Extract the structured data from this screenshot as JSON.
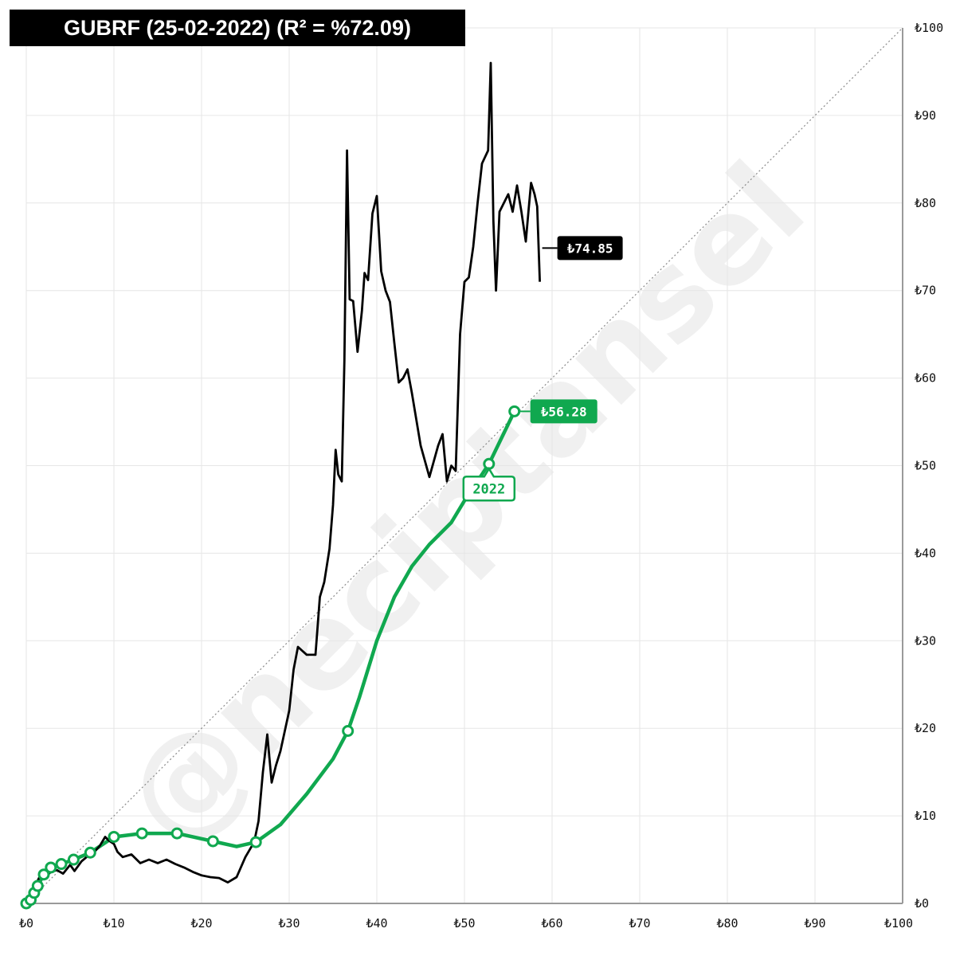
{
  "title": "GUBRF (25-02-2022) (R² = %72.09)",
  "watermark": "@neciptansel",
  "colors": {
    "price": "#000000",
    "fair": "#10a84f",
    "grid": "#e6e6e6",
    "tag_bg": "#000000"
  },
  "chart_data": {
    "type": "line",
    "title": "GUBRF (25-02-2022) (R² = %72.09)",
    "xlim": [
      0,
      100
    ],
    "ylim": [
      0,
      100
    ],
    "x_ticks": [
      "₺0",
      "₺10",
      "₺20",
      "₺30",
      "₺40",
      "₺50",
      "₺60",
      "₺70",
      "₺80",
      "₺90",
      "₺100"
    ],
    "y_ticks": [
      "₺0",
      "₺10",
      "₺20",
      "₺30",
      "₺40",
      "₺50",
      "₺60",
      "₺70",
      "₺80",
      "₺90",
      "₺100"
    ],
    "grid": true,
    "reference_line": {
      "from": [
        0,
        0
      ],
      "to": [
        100,
        100
      ],
      "style": "dotted"
    },
    "series": [
      {
        "key": "price",
        "label": "₺74.85",
        "points": [
          [
            0,
            0
          ],
          [
            0.5,
            1
          ],
          [
            1,
            2
          ],
          [
            1.5,
            3
          ],
          [
            2,
            2.8
          ],
          [
            2.8,
            3.6
          ],
          [
            3.5,
            3.8
          ],
          [
            4.2,
            3.4
          ],
          [
            5,
            4.4
          ],
          [
            5.5,
            3.7
          ],
          [
            6.3,
            4.8
          ],
          [
            7,
            5.4
          ],
          [
            7.7,
            5.8
          ],
          [
            8.4,
            6.6
          ],
          [
            9,
            7.6
          ],
          [
            9.4,
            7.2
          ],
          [
            10,
            6.8
          ],
          [
            10.4,
            5.9
          ],
          [
            11,
            5.3
          ],
          [
            12,
            5.6
          ],
          [
            13,
            4.6
          ],
          [
            14,
            5
          ],
          [
            15,
            4.6
          ],
          [
            16,
            5
          ],
          [
            17,
            4.5
          ],
          [
            18,
            4.1
          ],
          [
            19,
            3.6
          ],
          [
            20,
            3.2
          ],
          [
            21,
            3
          ],
          [
            22,
            2.9
          ],
          [
            23,
            2.4
          ],
          [
            24,
            3
          ],
          [
            25,
            5.3
          ],
          [
            26,
            7
          ],
          [
            26.5,
            9.4
          ],
          [
            27,
            15
          ],
          [
            27.5,
            19.3
          ],
          [
            28,
            13.8
          ],
          [
            28.5,
            15.8
          ],
          [
            29,
            17.4
          ],
          [
            30,
            22
          ],
          [
            30.5,
            26.7
          ],
          [
            31,
            29.3
          ],
          [
            32,
            28.4
          ],
          [
            33,
            28.4
          ],
          [
            33.5,
            35
          ],
          [
            34,
            36.7
          ],
          [
            34.6,
            40.5
          ],
          [
            35,
            45.5
          ],
          [
            35.3,
            51.8
          ],
          [
            35.6,
            49
          ],
          [
            36,
            48.2
          ],
          [
            36.3,
            62
          ],
          [
            36.6,
            86
          ],
          [
            36.9,
            69
          ],
          [
            37.3,
            68.8
          ],
          [
            37.8,
            63
          ],
          [
            38.3,
            67.7
          ],
          [
            38.6,
            72
          ],
          [
            39,
            71.2
          ],
          [
            39.5,
            78.8
          ],
          [
            40,
            80.8
          ],
          [
            40.5,
            72.2
          ],
          [
            41,
            70
          ],
          [
            41.5,
            68.7
          ],
          [
            42,
            64
          ],
          [
            42.5,
            59.5
          ],
          [
            43,
            60
          ],
          [
            43.5,
            61
          ],
          [
            44,
            58.3
          ],
          [
            45,
            52.3
          ],
          [
            46,
            48.7
          ],
          [
            47,
            52.3
          ],
          [
            47.5,
            53.6
          ],
          [
            48,
            48.2
          ],
          [
            48.5,
            50
          ],
          [
            49,
            49.4
          ],
          [
            49.5,
            65
          ],
          [
            50,
            71
          ],
          [
            50.5,
            71.5
          ],
          [
            51,
            75
          ],
          [
            51.5,
            80
          ],
          [
            52,
            84.5
          ],
          [
            52.7,
            86
          ],
          [
            53,
            96
          ],
          [
            53.3,
            78
          ],
          [
            53.6,
            70
          ],
          [
            54,
            79
          ],
          [
            54.5,
            80
          ],
          [
            55,
            81
          ],
          [
            55.5,
            79
          ],
          [
            56,
            82
          ],
          [
            56.5,
            79
          ],
          [
            57,
            75.6
          ],
          [
            57.3,
            79
          ],
          [
            57.6,
            82.3
          ],
          [
            58,
            81
          ],
          [
            58.3,
            79.6
          ],
          [
            58.6,
            71
          ]
        ]
      },
      {
        "key": "fair",
        "label": "₺56.28",
        "callout": "2022",
        "markers": [
          [
            0,
            0
          ],
          [
            0.5,
            0.4
          ],
          [
            0.9,
            1.2
          ],
          [
            1.3,
            2
          ],
          [
            2,
            3.3
          ],
          [
            2.8,
            4.1
          ],
          [
            4,
            4.5
          ],
          [
            5.4,
            5
          ],
          [
            7.3,
            5.8
          ],
          [
            10,
            7.6
          ],
          [
            13.2,
            8
          ],
          [
            17.2,
            8
          ],
          [
            21.3,
            7.1
          ],
          [
            26.2,
            7
          ],
          [
            36.7,
            19.7
          ],
          [
            52.8,
            50.2
          ],
          [
            55.7,
            56.2
          ]
        ],
        "points": [
          [
            0,
            0
          ],
          [
            0.5,
            0.4
          ],
          [
            0.9,
            1.2
          ],
          [
            1.3,
            2
          ],
          [
            2,
            3.3
          ],
          [
            2.8,
            4.1
          ],
          [
            4,
            4.5
          ],
          [
            5.4,
            5
          ],
          [
            7.3,
            5.8
          ],
          [
            10,
            7.6
          ],
          [
            13.2,
            8
          ],
          [
            17.2,
            8
          ],
          [
            21.3,
            7.1
          ],
          [
            24,
            6.5
          ],
          [
            26.2,
            7
          ],
          [
            29,
            9
          ],
          [
            32,
            12.5
          ],
          [
            35,
            16.5
          ],
          [
            36.7,
            19.7
          ],
          [
            38,
            23.5
          ],
          [
            40,
            30
          ],
          [
            42,
            35
          ],
          [
            44,
            38.5
          ],
          [
            46,
            41
          ],
          [
            48.5,
            43.5
          ],
          [
            50,
            46
          ],
          [
            52.8,
            50.2
          ],
          [
            55.7,
            56.2
          ]
        ]
      }
    ]
  }
}
